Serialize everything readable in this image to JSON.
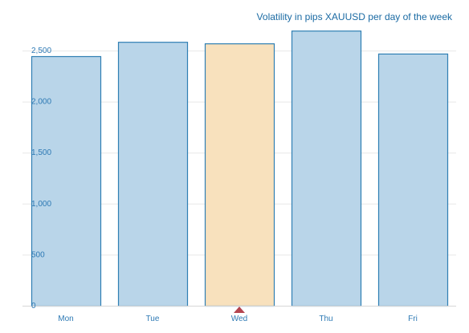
{
  "chart_data": {
    "type": "bar",
    "title": "Volatility in pips XAUUSD per day of the week",
    "categories": [
      "Mon",
      "Tue",
      "Wed",
      "Thu",
      "Fri"
    ],
    "values": [
      2445,
      2585,
      2570,
      2695,
      2470
    ],
    "highlight_index": 2,
    "ylim": [
      0,
      2500
    ],
    "yticks": [
      0,
      500,
      1000,
      1500,
      2000,
      2500
    ],
    "ytick_labels": [
      "0",
      "500",
      "1,000",
      "1,500",
      "2,000",
      "2,500"
    ],
    "grid": true,
    "colors": {
      "bar_fill": "#b9d5e9",
      "bar_stroke": "#2f7fb3",
      "highlight_fill": "#f8e1bd",
      "highlight_stroke": "#2f7fb3",
      "marker": "#b5454f",
      "text": "#2d79b4",
      "title": "#1a6aa3"
    }
  }
}
